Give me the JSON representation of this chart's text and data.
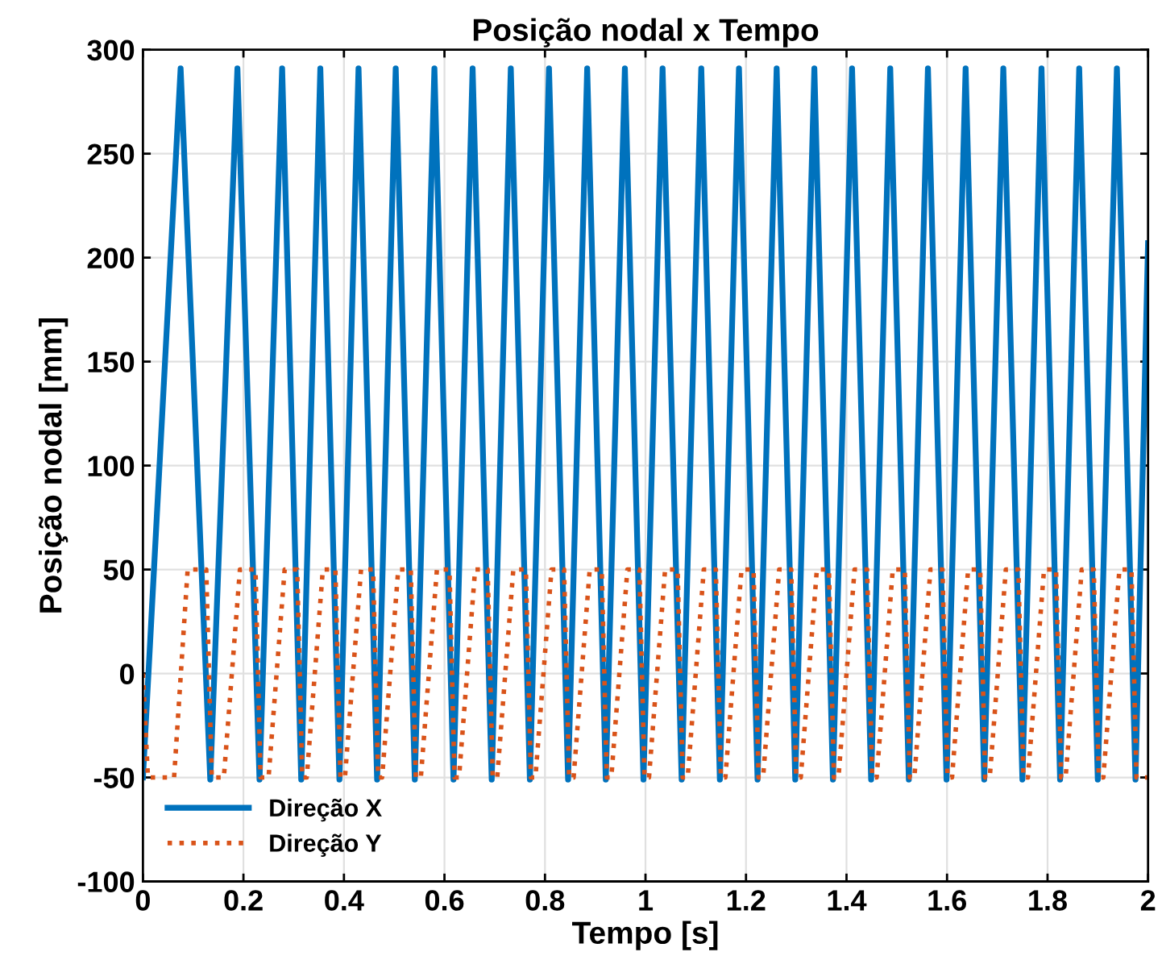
{
  "chart_data": {
    "type": "line",
    "title": "Posição nodal x Tempo",
    "xlabel": "Tempo [s]",
    "ylabel": "Posição nodal [mm]",
    "xlim": [
      0,
      2
    ],
    "xticks": [
      0,
      0.2,
      0.4,
      0.6,
      0.8,
      1,
      1.2,
      1.4,
      1.6,
      1.8,
      2
    ],
    "ylim": [
      -100,
      300
    ],
    "yticks": [
      -100,
      -50,
      0,
      50,
      100,
      150,
      200,
      250,
      300
    ],
    "grid": true,
    "legend": "bottom left",
    "marker": "none",
    "series": [
      {
        "name": "Direção X",
        "color": "#0072bd",
        "line_style": "solid",
        "x": [
          0,
          0.075,
          0.134,
          0.188,
          0.232,
          0.277,
          0.315,
          0.353,
          0.391,
          0.429,
          0.466,
          0.503,
          0.541,
          0.58,
          0.618,
          0.656,
          0.694,
          0.732,
          0.77,
          0.808,
          0.846,
          0.884,
          0.921,
          0.959,
          0.996,
          1.034,
          1.072,
          1.111,
          1.148,
          1.186,
          1.223,
          1.261,
          1.298,
          1.336,
          1.373,
          1.411,
          1.449,
          1.487,
          1.524,
          1.562,
          1.599,
          1.637,
          1.674,
          1.712,
          1.75,
          1.788,
          1.825,
          1.863,
          1.9,
          1.938,
          1.975,
          2.0
        ],
        "values": [
          -50,
          291,
          -51,
          291,
          -51,
          291,
          -51,
          291,
          -51,
          291,
          -51,
          291,
          -51,
          291,
          -51,
          291,
          -51,
          291,
          -51,
          291,
          -51,
          291,
          -51,
          291,
          -51,
          291,
          -51,
          291,
          -51,
          291,
          -51,
          291,
          -51,
          291,
          -51,
          291,
          -51,
          291,
          -51,
          291,
          -51,
          291,
          -51,
          291,
          -51,
          291,
          -51,
          291,
          -51,
          291,
          -51,
          207
        ]
      },
      {
        "name": "Direção Y",
        "color": "#d95319",
        "line_style": "dotted",
        "x": [
          0,
          0.01,
          0.062,
          0.089,
          0.126,
          0.137,
          0.161,
          0.193,
          0.224,
          0.234,
          0.25,
          0.282,
          0.307,
          0.317,
          0.326,
          0.358,
          0.383,
          0.393,
          0.402,
          0.434,
          0.458,
          0.468,
          0.476,
          0.508,
          0.533,
          0.543,
          0.553,
          0.585,
          0.61,
          0.62,
          0.629,
          0.661,
          0.686,
          0.696,
          0.705,
          0.737,
          0.762,
          0.772,
          0.781,
          0.813,
          0.838,
          0.848,
          0.857,
          0.889,
          0.913,
          0.923,
          0.932,
          0.964,
          0.988,
          0.998,
          1.007,
          1.039,
          1.064,
          1.074,
          1.084,
          1.116,
          1.14,
          1.15,
          1.159,
          1.191,
          1.215,
          1.225,
          1.234,
          1.266,
          1.29,
          1.3,
          1.309,
          1.341,
          1.365,
          1.375,
          1.384,
          1.416,
          1.441,
          1.451,
          1.46,
          1.492,
          1.516,
          1.526,
          1.535,
          1.567,
          1.591,
          1.601,
          1.61,
          1.642,
          1.666,
          1.676,
          1.685,
          1.717,
          1.742,
          1.752,
          1.761,
          1.793,
          1.817,
          1.827,
          1.836,
          1.868,
          1.892,
          1.902,
          1.911,
          1.943,
          1.967,
          1.977,
          2.0
        ],
        "values": [
          0,
          -50,
          -50,
          50,
          50,
          -50,
          -50,
          50,
          50,
          -50,
          -50,
          50,
          50,
          -50,
          -50,
          50,
          50,
          -50,
          -50,
          50,
          50,
          -50,
          -50,
          50,
          50,
          -50,
          -50,
          50,
          50,
          -50,
          -50,
          50,
          50,
          -50,
          -50,
          50,
          50,
          -50,
          -50,
          50,
          50,
          -50,
          -50,
          50,
          50,
          -50,
          -50,
          50,
          50,
          -50,
          -50,
          50,
          50,
          -50,
          -50,
          50,
          50,
          -50,
          -50,
          50,
          50,
          -50,
          -50,
          50,
          50,
          -50,
          -50,
          50,
          50,
          -50,
          -50,
          50,
          50,
          -50,
          -50,
          50,
          50,
          -50,
          -50,
          50,
          50,
          -50,
          -50,
          50,
          50,
          -50,
          -50,
          50,
          50,
          -50,
          -50,
          50,
          50,
          -50,
          -50,
          50,
          50,
          -50,
          -50,
          50,
          50,
          -50,
          -50
        ]
      }
    ]
  }
}
